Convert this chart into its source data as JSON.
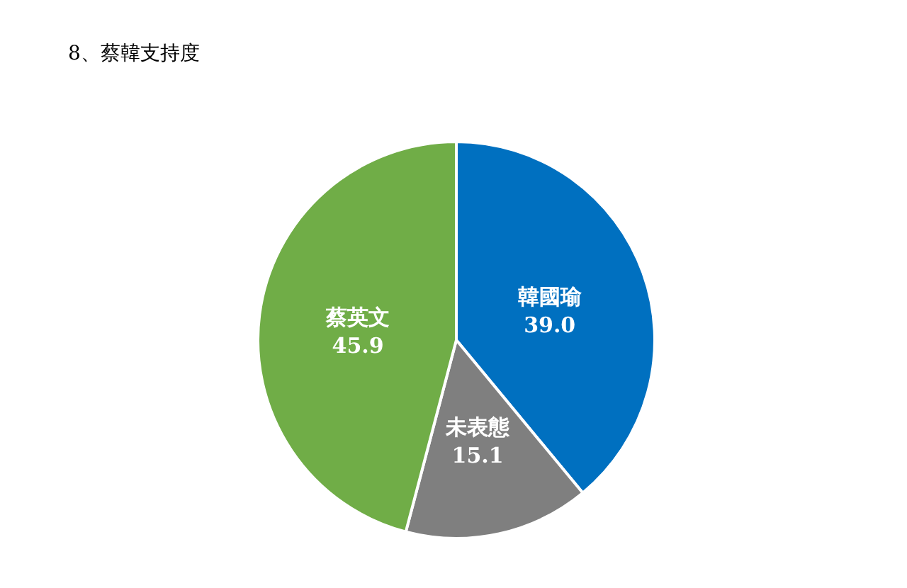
{
  "chart_data": {
    "type": "pie",
    "title": "8、蔡韓支持度",
    "categories": [
      "韓國瑜",
      "未表態",
      "蔡英文"
    ],
    "values": [
      39.0,
      15.1,
      45.9
    ],
    "value_labels": [
      "39.0",
      "15.1",
      "45.9"
    ],
    "colors": [
      "#0070c0",
      "#7f7f7f",
      "#70ad47"
    ]
  }
}
